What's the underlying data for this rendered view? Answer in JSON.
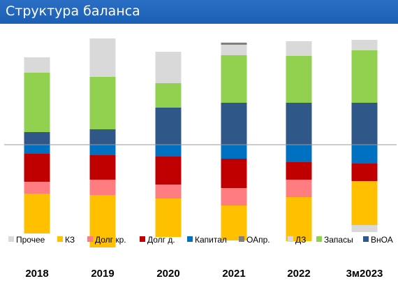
{
  "chart_data": {
    "type": "bar",
    "stacked": "diverging",
    "title": "Структура баланса",
    "categories": [
      "2018",
      "2019",
      "2020",
      "2021",
      "2022",
      "3м2023"
    ],
    "positive_series": [
      {
        "name": "ВнОА",
        "color": "#2f5888",
        "values": [
          18,
          22,
          53,
          60,
          60,
          60
        ]
      },
      {
        "name": "Запасы",
        "color": "#92d050",
        "values": [
          85,
          75,
          35,
          68,
          67,
          75
        ]
      },
      {
        "name": "ДЗ",
        "color": "#d9d9d9",
        "values": [
          22,
          55,
          45,
          15,
          21,
          15
        ]
      },
      {
        "name": "ОАпр.",
        "color": "#7f7f7f",
        "values": [
          0,
          0,
          0,
          3,
          0,
          0
        ]
      }
    ],
    "negative_series": [
      {
        "name": "Капитал",
        "color": "#0070c0",
        "values": [
          13,
          15,
          17,
          20,
          25,
          27
        ]
      },
      {
        "name": "Долг д.",
        "color": "#c00000",
        "values": [
          40,
          35,
          40,
          42,
          25,
          25
        ]
      },
      {
        "name": "Долг кр.",
        "color": "#ff7c80",
        "values": [
          17,
          22,
          20,
          25,
          25,
          0
        ]
      },
      {
        "name": "КЗ",
        "color": "#ffc000",
        "values": [
          57,
          75,
          55,
          50,
          63,
          63
        ]
      },
      {
        "name": "Прочее",
        "color": "#d9d9d9",
        "values": [
          0,
          0,
          0,
          0,
          0,
          10
        ]
      }
    ],
    "legend": {
      "position": "bottom",
      "items": [
        {
          "name": "Прочее",
          "color": "#d9d9d9"
        },
        {
          "name": "КЗ",
          "color": "#ffc000"
        },
        {
          "name": "Долг кр.",
          "color": "#ff7c80"
        },
        {
          "name": "Долг д.",
          "color": "#c00000"
        },
        {
          "name": "Капитал",
          "color": "#0070c0"
        },
        {
          "name": "ОАпр.",
          "color": "#7f7f7f"
        },
        {
          "name": "ДЗ",
          "color": "#d9d9d9"
        },
        {
          "name": "Запасы",
          "color": "#92d050"
        },
        {
          "name": "ВнОА",
          "color": "#2f5888"
        }
      ]
    },
    "ylim": [
      -140,
      150
    ],
    "grid": false,
    "xlabel": "",
    "ylabel": ""
  }
}
